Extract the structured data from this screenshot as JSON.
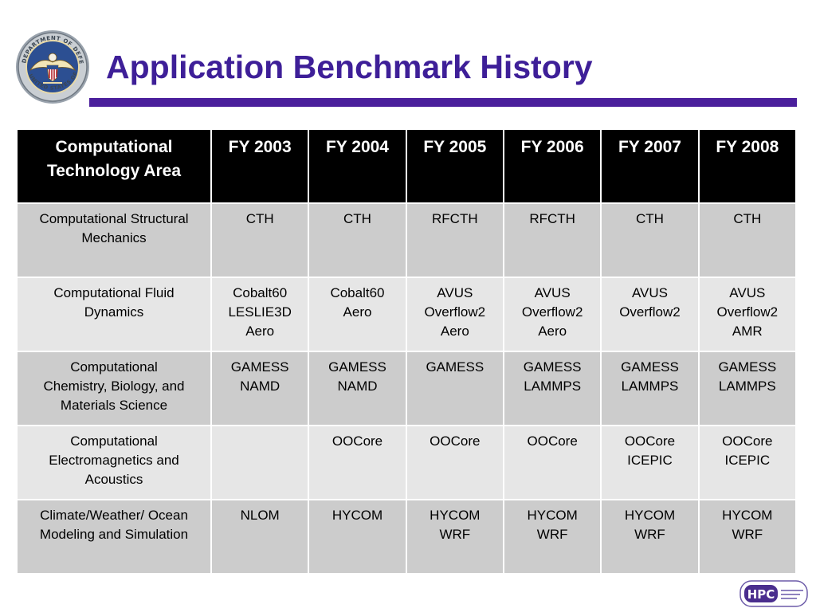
{
  "slide": {
    "title": "Application Benchmark History",
    "colors": {
      "title": "#3e1f98",
      "rule": "#4b1f9c",
      "header_bg": "#000000",
      "row_dark": "#cccccc",
      "row_light": "#e6e6e6"
    }
  },
  "seal": {
    "icon": "department-of-defense-seal-icon",
    "text": "DEPARTMENT OF DEFENSE · UNITED STATES OF AMERICA"
  },
  "table": {
    "headers": [
      [
        "Computational",
        "Technology Area"
      ],
      [
        "FY 2003"
      ],
      [
        "FY 2004"
      ],
      [
        "FY 2005"
      ],
      [
        "FY 2006"
      ],
      [
        "FY 2007"
      ],
      [
        "FY 2008"
      ]
    ],
    "rows": [
      {
        "cells": [
          [
            "Computational Structural",
            "Mechanics"
          ],
          [
            "CTH"
          ],
          [
            "CTH"
          ],
          [
            "RFCTH"
          ],
          [
            "RFCTH"
          ],
          [
            "CTH"
          ],
          [
            "CTH"
          ]
        ]
      },
      {
        "cells": [
          [
            "Computational Fluid",
            "Dynamics"
          ],
          [
            "Cobalt60",
            "LESLIE3D",
            "Aero"
          ],
          [
            "Cobalt60",
            "Aero"
          ],
          [
            "AVUS",
            "Overflow2",
            "Aero"
          ],
          [
            "AVUS",
            "Overflow2",
            "Aero"
          ],
          [
            "AVUS",
            "Overflow2"
          ],
          [
            "AVUS",
            "Overflow2",
            "AMR"
          ]
        ]
      },
      {
        "cells": [
          [
            "Computational",
            "Chemistry, Biology, and",
            "Materials Science"
          ],
          [
            "GAMESS",
            "NAMD"
          ],
          [
            "GAMESS",
            "NAMD"
          ],
          [
            "GAMESS"
          ],
          [
            "GAMESS",
            "LAMMPS"
          ],
          [
            "GAMESS",
            "LAMMPS"
          ],
          [
            "GAMESS",
            "LAMMPS"
          ]
        ]
      },
      {
        "cells": [
          [
            "Computational",
            "Electromagnetics and",
            "Acoustics"
          ],
          [],
          [
            "OOCore"
          ],
          [
            "OOCore"
          ],
          [
            "OOCore"
          ],
          [
            "OOCore",
            "ICEPIC"
          ],
          [
            "OOCore",
            "ICEPIC"
          ]
        ]
      },
      {
        "cells": [
          [
            "Climate/Weather/ Ocean",
            "Modeling and Simulation"
          ],
          [
            "NLOM"
          ],
          [
            "HYCOM"
          ],
          [
            "HYCOM",
            "WRF"
          ],
          [
            "HYCOM",
            "WRF"
          ],
          [
            "HYCOM",
            "WRF"
          ],
          [
            "HYCOM",
            "WRF"
          ]
        ]
      }
    ]
  },
  "logo": {
    "icon": "hpc-logo-icon",
    "text": "HPC"
  }
}
